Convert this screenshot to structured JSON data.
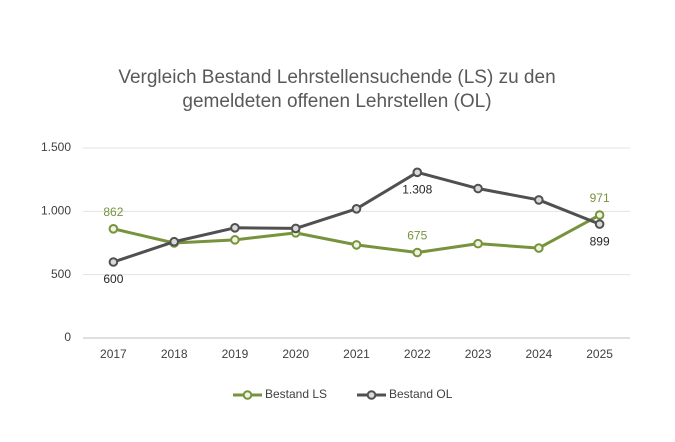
{
  "chart_data": {
    "type": "line",
    "title": "Vergleich Bestand Lehrstellensuchende (LS) zu den gemeldeten offenen Lehrstellen (OL)",
    "categories": [
      "2017",
      "2018",
      "2019",
      "2020",
      "2021",
      "2022",
      "2023",
      "2024",
      "2025"
    ],
    "series": [
      {
        "name": "Bestand LS",
        "color": "#77933c",
        "values": [
          862,
          750,
          775,
          830,
          735,
          675,
          745,
          710,
          971
        ],
        "value_labels": [
          "862",
          null,
          null,
          null,
          null,
          "675",
          null,
          null,
          "971"
        ]
      },
      {
        "name": "Bestand OL",
        "color": "#505050",
        "values": [
          600,
          760,
          870,
          865,
          1020,
          1308,
          1180,
          1090,
          899
        ],
        "value_labels": [
          "600",
          null,
          null,
          null,
          null,
          "1.308",
          null,
          null,
          "899"
        ]
      }
    ],
    "ylim": [
      0,
      1500
    ],
    "yticks": [
      0,
      500,
      {
        "value": 1000,
        "label": "1.000"
      },
      {
        "value": 1500,
        "label": "1.500"
      }
    ],
    "grid": true,
    "legend": "bottom"
  }
}
